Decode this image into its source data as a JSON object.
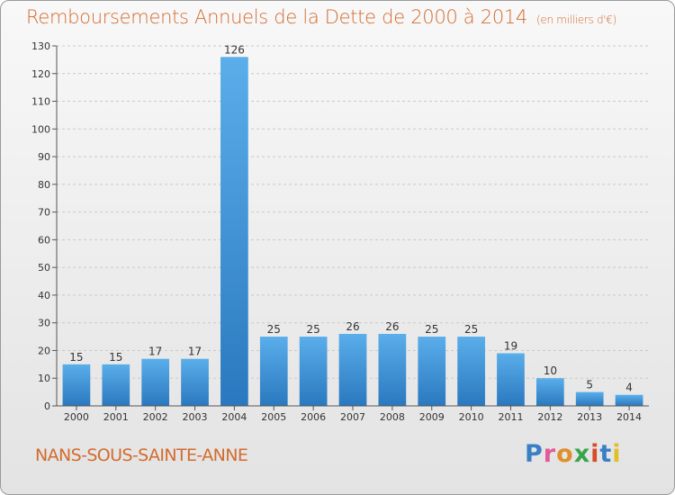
{
  "header": {
    "title": "Remboursements Annuels de la Dette de 2000 à 2014",
    "unit": "(en milliers d'€)"
  },
  "footer": {
    "commune": "NANS-SOUS-SAINTE-ANNE",
    "logo_letters": [
      "P",
      "r",
      "o",
      "x",
      "i",
      "t",
      "i"
    ],
    "logo_colors": [
      "#3a7fc6",
      "#e35a9a",
      "#e0902a",
      "#37a54a",
      "#d94a2d",
      "#3a7fc6",
      "#e0c02a"
    ]
  },
  "chart_data": {
    "type": "bar",
    "categories": [
      "2000",
      "2001",
      "2002",
      "2003",
      "2004",
      "2005",
      "2006",
      "2007",
      "2008",
      "2009",
      "2010",
      "2011",
      "2012",
      "2013",
      "2014"
    ],
    "values": [
      15,
      15,
      17,
      17,
      126,
      25,
      25,
      26,
      26,
      25,
      25,
      19,
      10,
      5,
      4
    ],
    "ylim": [
      0,
      130
    ],
    "yticks": [
      0,
      10,
      20,
      30,
      40,
      50,
      60,
      70,
      80,
      90,
      100,
      110,
      120,
      130
    ],
    "grid": true,
    "bar_color": "#3d8fd6"
  }
}
